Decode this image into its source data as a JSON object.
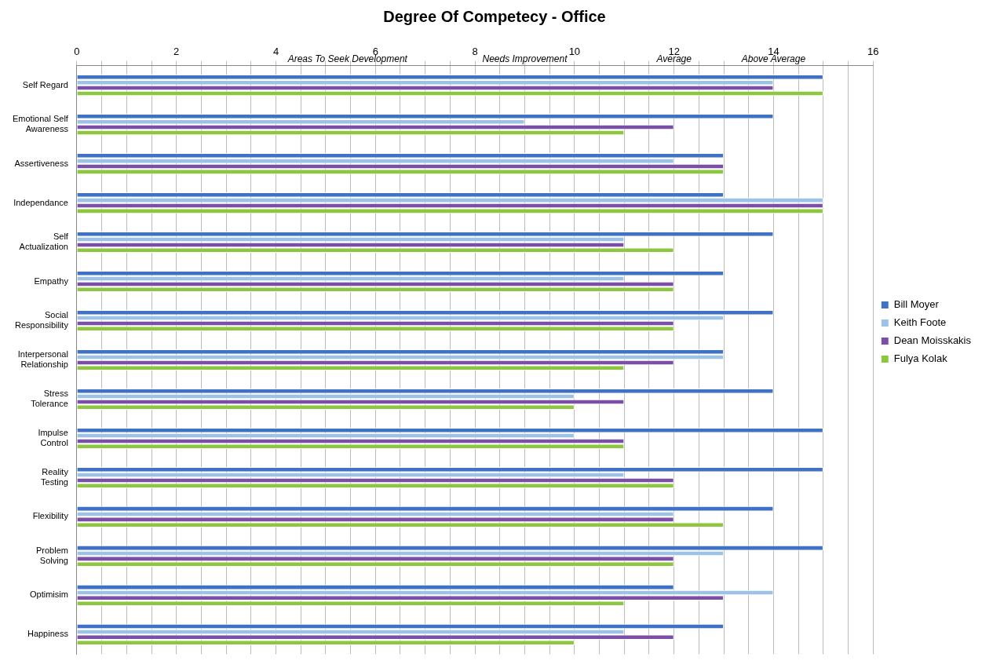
{
  "chart_data": {
    "type": "bar",
    "orientation": "horizontal",
    "title": "Degree Of Competecy - Office",
    "categories": [
      "Self Regard",
      "Emotional Self Awareness",
      "Assertiveness",
      "Independance",
      "Self Actualization",
      "Empathy",
      "Social Responsibility",
      "Interpersonal Relationship",
      "Stress Tolerance",
      "Impulse Control",
      "Reality Testing",
      "Flexibility",
      "Problem Solving",
      "Optimisim",
      "Happiness"
    ],
    "series": [
      {
        "name": "Bill Moyer",
        "color": "#3f72c4",
        "values": [
          15,
          14,
          13,
          13,
          14,
          13,
          14,
          13,
          14,
          15,
          15,
          14,
          15,
          12,
          13
        ]
      },
      {
        "name": "Keith Foote",
        "color": "#9cc2e8",
        "values": [
          14,
          9,
          12,
          15,
          11,
          11,
          13,
          13,
          10,
          10,
          11,
          12,
          13,
          14,
          11
        ]
      },
      {
        "name": "Dean Moisskakis",
        "color": "#7b4fa6",
        "values": [
          14,
          12,
          13,
          15,
          11,
          12,
          12,
          12,
          11,
          11,
          12,
          12,
          12,
          13,
          12
        ]
      },
      {
        "name": "Fulya Kolak",
        "color": "#8dc63f",
        "values": [
          15,
          11,
          13,
          15,
          12,
          12,
          12,
          11,
          10,
          11,
          12,
          13,
          12,
          11,
          10
        ]
      }
    ],
    "xlim": [
      0,
      16
    ],
    "xticks": [
      0,
      {
        "value": 0.5,
        "label": null
      },
      {
        "value": 1,
        "label": null
      },
      {
        "value": 1.5,
        "label": null
      },
      2,
      {
        "value": 2.5,
        "label": null
      },
      {
        "value": 3,
        "label": null
      },
      {
        "value": 3.5,
        "label": null
      },
      4,
      {
        "value": 4.5,
        "label": null
      },
      {
        "value": 5,
        "label": null
      },
      {
        "value": 5.5,
        "label": null
      },
      6,
      {
        "value": 6.5,
        "label": null
      },
      {
        "value": 7,
        "label": null
      },
      {
        "value": 7.5,
        "label": null
      },
      8,
      {
        "value": 8.5,
        "label": null
      },
      {
        "value": 9,
        "label": null
      },
      {
        "value": 9.5,
        "label": null
      },
      10,
      {
        "value": 10.5,
        "label": null
      },
      {
        "value": 11,
        "label": null
      },
      {
        "value": 11.5,
        "label": null
      },
      12,
      {
        "value": 12.5,
        "label": null
      },
      {
        "value": 13,
        "label": null
      },
      {
        "value": 13.5,
        "label": null
      },
      14,
      {
        "value": 14.5,
        "label": null
      },
      {
        "value": 15,
        "label": null
      },
      {
        "value": 15.5,
        "label": null
      },
      16
    ],
    "annotations": [
      "Areas To Seek Development",
      "Needs Improvement",
      "Average",
      "Above Average"
    ],
    "grid": "x",
    "legend": "right"
  }
}
